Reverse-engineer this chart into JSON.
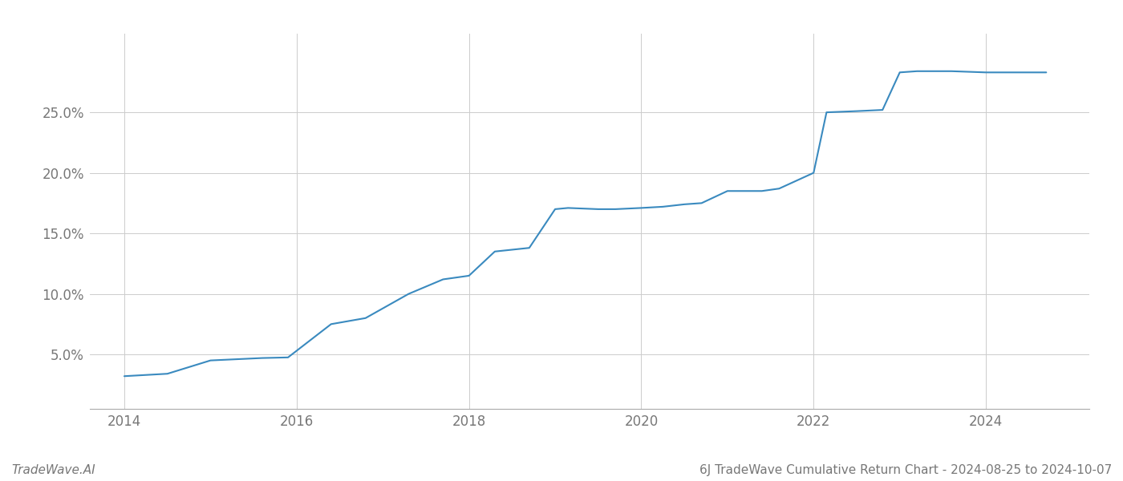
{
  "title": "6J TradeWave Cumulative Return Chart - 2024-08-25 to 2024-10-07",
  "watermark": "TradeWave.AI",
  "line_color": "#3a8abf",
  "background_color": "#ffffff",
  "grid_color": "#cccccc",
  "x_values": [
    2014.0,
    2014.5,
    2015.0,
    2015.6,
    2015.9,
    2016.4,
    2016.8,
    2017.3,
    2017.7,
    2018.0,
    2018.3,
    2018.7,
    2019.0,
    2019.15,
    2019.5,
    2019.7,
    2020.0,
    2020.25,
    2020.5,
    2020.7,
    2021.0,
    2021.4,
    2021.6,
    2022.0,
    2022.15,
    2022.5,
    2022.8,
    2023.0,
    2023.2,
    2023.6,
    2024.0,
    2024.7
  ],
  "y_values": [
    3.2,
    3.4,
    4.5,
    4.7,
    4.75,
    7.5,
    8.0,
    10.0,
    11.2,
    11.5,
    13.5,
    13.8,
    17.0,
    17.1,
    17.0,
    17.0,
    17.1,
    17.2,
    17.4,
    17.5,
    18.5,
    18.5,
    18.7,
    20.0,
    25.0,
    25.1,
    25.2,
    28.3,
    28.4,
    28.4,
    28.3,
    28.3
  ],
  "xlim": [
    2013.6,
    2025.2
  ],
  "ylim": [
    0.5,
    31.5
  ],
  "xticks": [
    2014,
    2016,
    2018,
    2020,
    2022,
    2024
  ],
  "yticks": [
    5.0,
    10.0,
    15.0,
    20.0,
    25.0
  ],
  "ytick_labels": [
    "5.0%",
    "10.0%",
    "15.0%",
    "20.0%",
    "25.0%"
  ],
  "line_width": 1.5,
  "figsize": [
    14.0,
    6.0
  ],
  "dpi": 100,
  "tick_fontsize": 12,
  "footer_fontsize": 11
}
